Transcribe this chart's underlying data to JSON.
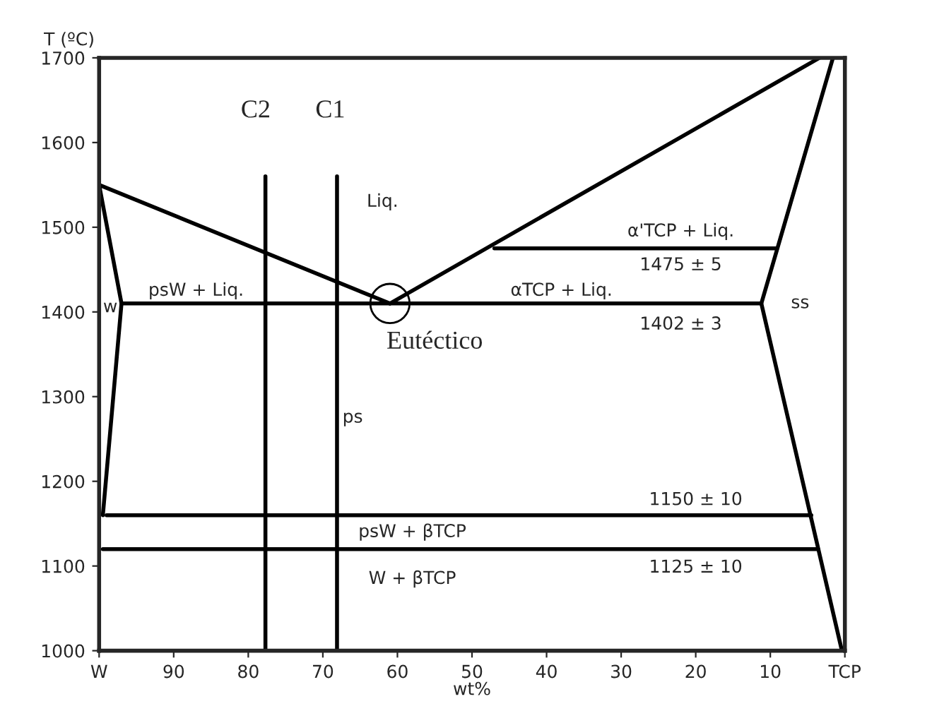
{
  "chart_data": {
    "type": "line",
    "xlabel": "wt%",
    "ylabel": "T (ºC)",
    "xlim": [
      100,
      0
    ],
    "ylim": [
      1000,
      1700
    ],
    "xticks": [
      {
        "value": 100,
        "label": "W"
      },
      90,
      80,
      70,
      60,
      50,
      40,
      30,
      20,
      10,
      {
        "value": 0,
        "label": "TCP"
      }
    ],
    "yticks": [
      1000,
      1100,
      1200,
      1300,
      1400,
      1500,
      1600,
      1700
    ],
    "grid": false,
    "legend": false,
    "marker": "none",
    "line_style": "solid",
    "series": [
      {
        "color": "#000000",
        "x": [
          100,
          61
        ],
        "values": [
          1550,
          1410
        ]
      },
      {
        "color": "#000000",
        "x": [
          61,
          3.4
        ],
        "values": [
          1410,
          1700
        ]
      },
      {
        "color": "#000000",
        "x": [
          97,
          11.2
        ],
        "values": [
          1410,
          1410
        ]
      },
      {
        "color": "#000000",
        "x": [
          47,
          9.1
        ],
        "values": [
          1475,
          1475
        ]
      },
      {
        "color": "#000000",
        "x": [
          1.6,
          11.2,
          0.4
        ],
        "values": [
          1700,
          1410,
          1000
        ]
      },
      {
        "color": "#000000",
        "x": [
          99,
          4.5
        ],
        "values": [
          1160,
          1160
        ]
      },
      {
        "color": "#000000",
        "x": [
          99.5,
          3.6
        ],
        "values": [
          1120,
          1120
        ]
      },
      {
        "color": "#000000",
        "x": [
          100,
          97,
          99.5
        ],
        "values": [
          1550,
          1410,
          1160
        ]
      },
      {
        "color": "#000000",
        "x": [
          77.7,
          77.7
        ],
        "values": [
          1000,
          1560
        ]
      },
      {
        "color": "#000000",
        "x": [
          68.1,
          68.1
        ],
        "values": [
          1000,
          1560
        ]
      },
      {
        "type": "scatter",
        "color": "#000000",
        "x": [
          61
        ],
        "values": [
          1410
        ],
        "marker": "circle"
      }
    ],
    "annotations": [
      "C2",
      "C1",
      "Liq.",
      "psW + Liq.",
      "w",
      "αTCP + Liq.",
      "α'TCP + Liq.",
      "1475 ± 5",
      "1402 ± 3",
      "ss",
      "Eutéctico",
      "ps",
      "1150 ± 10",
      "psW + βTCP",
      "1125 ± 10",
      "W + βTCP"
    ]
  }
}
